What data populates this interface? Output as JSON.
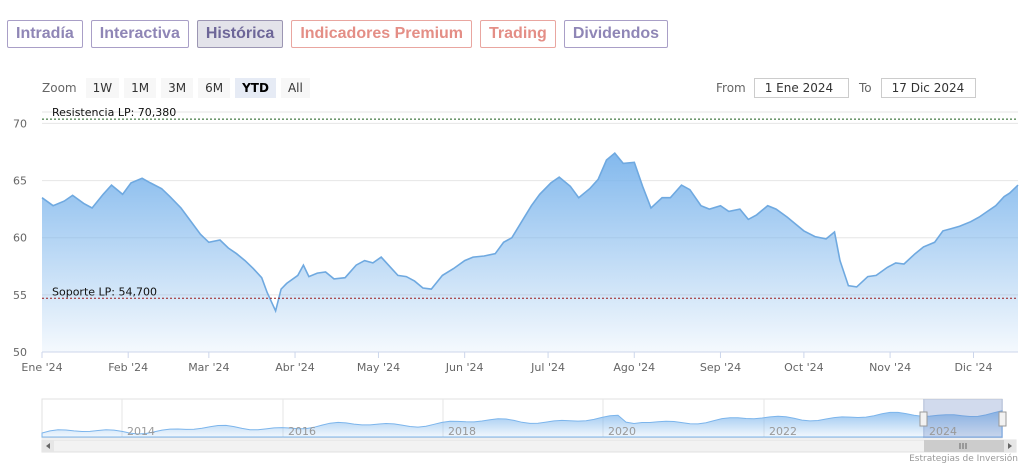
{
  "tabs": [
    {
      "label": "Intradía"
    },
    {
      "label": "Interactiva"
    },
    {
      "label": "Histórica"
    },
    {
      "label": "Indicadores Premium"
    },
    {
      "label": "Trading"
    },
    {
      "label": "Dividendos"
    }
  ],
  "zoom": {
    "label": "Zoom",
    "buttons": [
      "1W",
      "1M",
      "3M",
      "6M",
      "YTD",
      "All"
    ],
    "selected": "YTD"
  },
  "range": {
    "from_label": "From",
    "from_value": "1 Ene 2024",
    "to_label": "To",
    "to_value": "17 Dic 2024"
  },
  "credit": "Estrategias de Inversión",
  "colors": {
    "area_top": "#7cb5ec",
    "line": "#6fa9e0",
    "resistance": "#1a5c1a",
    "support": "#9b1c1c"
  },
  "chart_data": {
    "type": "area",
    "ylim": [
      50,
      71
    ],
    "yticks": [
      50,
      55,
      60,
      65,
      70
    ],
    "xlim": [
      "2024-01-01",
      "2024-12-17"
    ],
    "xticks": [
      {
        "date": "2024-01-01",
        "label": "Ene '24"
      },
      {
        "date": "2024-02-01",
        "label": "Feb '24"
      },
      {
        "date": "2024-03-01",
        "label": "Mar '24"
      },
      {
        "date": "2024-04-01",
        "label": "Abr '24"
      },
      {
        "date": "2024-05-01",
        "label": "May '24"
      },
      {
        "date": "2024-06-01",
        "label": "Jun '24"
      },
      {
        "date": "2024-07-01",
        "label": "Jul '24"
      },
      {
        "date": "2024-08-01",
        "label": "Ago '24"
      },
      {
        "date": "2024-09-01",
        "label": "Sep '24"
      },
      {
        "date": "2024-10-01",
        "label": "Oct '24"
      },
      {
        "date": "2024-11-01",
        "label": "Nov '24"
      },
      {
        "date": "2024-12-01",
        "label": "Dic '24"
      }
    ],
    "reference_lines": [
      {
        "label": "Resistencia LP: 70,380",
        "value": 70.38,
        "style": "resistance"
      },
      {
        "label": "Soporte LP: 54,700",
        "value": 54.7,
        "style": "support"
      }
    ],
    "series": [
      {
        "points": [
          [
            "2024-01-01",
            63.5
          ],
          [
            "2024-01-05",
            62.8
          ],
          [
            "2024-01-09",
            63.2
          ],
          [
            "2024-01-12",
            63.7
          ],
          [
            "2024-01-16",
            63.0
          ],
          [
            "2024-01-19",
            62.6
          ],
          [
            "2024-01-23",
            63.8
          ],
          [
            "2024-01-26",
            64.6
          ],
          [
            "2024-01-30",
            63.8
          ],
          [
            "2024-02-02",
            64.8
          ],
          [
            "2024-02-06",
            65.2
          ],
          [
            "2024-02-09",
            64.8
          ],
          [
            "2024-02-13",
            64.3
          ],
          [
            "2024-02-16",
            63.6
          ],
          [
            "2024-02-20",
            62.6
          ],
          [
            "2024-02-23",
            61.6
          ],
          [
            "2024-02-27",
            60.3
          ],
          [
            "2024-03-01",
            59.6
          ],
          [
            "2024-03-05",
            59.8
          ],
          [
            "2024-03-08",
            59.1
          ],
          [
            "2024-03-11",
            58.6
          ],
          [
            "2024-03-14",
            58.0
          ],
          [
            "2024-03-17",
            57.3
          ],
          [
            "2024-03-20",
            56.5
          ],
          [
            "2024-03-22",
            55.2
          ],
          [
            "2024-03-25",
            53.6
          ],
          [
            "2024-03-27",
            55.5
          ],
          [
            "2024-03-29",
            56.0
          ],
          [
            "2024-04-02",
            56.7
          ],
          [
            "2024-04-04",
            57.6
          ],
          [
            "2024-04-06",
            56.6
          ],
          [
            "2024-04-09",
            56.9
          ],
          [
            "2024-04-12",
            57.0
          ],
          [
            "2024-04-15",
            56.4
          ],
          [
            "2024-04-19",
            56.5
          ],
          [
            "2024-04-23",
            57.6
          ],
          [
            "2024-04-26",
            58.0
          ],
          [
            "2024-04-29",
            57.8
          ],
          [
            "2024-05-02",
            58.3
          ],
          [
            "2024-05-05",
            57.5
          ],
          [
            "2024-05-08",
            56.7
          ],
          [
            "2024-05-11",
            56.6
          ],
          [
            "2024-05-14",
            56.2
          ],
          [
            "2024-05-17",
            55.6
          ],
          [
            "2024-05-20",
            55.5
          ],
          [
            "2024-05-24",
            56.7
          ],
          [
            "2024-05-28",
            57.3
          ],
          [
            "2024-06-01",
            58.0
          ],
          [
            "2024-06-04",
            58.3
          ],
          [
            "2024-06-08",
            58.4
          ],
          [
            "2024-06-12",
            58.6
          ],
          [
            "2024-06-15",
            59.6
          ],
          [
            "2024-06-18",
            60.0
          ],
          [
            "2024-06-22",
            61.6
          ],
          [
            "2024-06-25",
            62.8
          ],
          [
            "2024-06-28",
            63.8
          ],
          [
            "2024-07-02",
            64.8
          ],
          [
            "2024-07-05",
            65.3
          ],
          [
            "2024-07-09",
            64.5
          ],
          [
            "2024-07-12",
            63.5
          ],
          [
            "2024-07-16",
            64.3
          ],
          [
            "2024-07-19",
            65.1
          ],
          [
            "2024-07-22",
            66.8
          ],
          [
            "2024-07-25",
            67.4
          ],
          [
            "2024-07-28",
            66.5
          ],
          [
            "2024-08-01",
            66.6
          ],
          [
            "2024-08-04",
            64.5
          ],
          [
            "2024-08-07",
            62.6
          ],
          [
            "2024-08-11",
            63.5
          ],
          [
            "2024-08-14",
            63.5
          ],
          [
            "2024-08-18",
            64.6
          ],
          [
            "2024-08-21",
            64.2
          ],
          [
            "2024-08-25",
            62.8
          ],
          [
            "2024-08-28",
            62.5
          ],
          [
            "2024-09-01",
            62.8
          ],
          [
            "2024-09-04",
            62.3
          ],
          [
            "2024-09-08",
            62.5
          ],
          [
            "2024-09-11",
            61.6
          ],
          [
            "2024-09-14",
            62.0
          ],
          [
            "2024-09-18",
            62.8
          ],
          [
            "2024-09-21",
            62.5
          ],
          [
            "2024-09-25",
            61.8
          ],
          [
            "2024-09-28",
            61.2
          ],
          [
            "2024-10-01",
            60.6
          ],
          [
            "2024-10-05",
            60.1
          ],
          [
            "2024-10-09",
            59.9
          ],
          [
            "2024-10-12",
            60.5
          ],
          [
            "2024-10-14",
            58.0
          ],
          [
            "2024-10-17",
            55.8
          ],
          [
            "2024-10-20",
            55.7
          ],
          [
            "2024-10-24",
            56.6
          ],
          [
            "2024-10-27",
            56.7
          ],
          [
            "2024-10-31",
            57.4
          ],
          [
            "2024-11-03",
            57.8
          ],
          [
            "2024-11-06",
            57.7
          ],
          [
            "2024-11-10",
            58.6
          ],
          [
            "2024-11-13",
            59.2
          ],
          [
            "2024-11-17",
            59.6
          ],
          [
            "2024-11-20",
            60.6
          ],
          [
            "2024-11-23",
            60.8
          ],
          [
            "2024-11-26",
            61.0
          ],
          [
            "2024-11-30",
            61.4
          ],
          [
            "2024-12-03",
            61.8
          ],
          [
            "2024-12-06",
            62.3
          ],
          [
            "2024-12-09",
            62.8
          ],
          [
            "2024-12-12",
            63.6
          ],
          [
            "2024-12-14",
            63.9
          ],
          [
            "2024-12-17",
            64.6
          ]
        ]
      }
    ],
    "navigator": {
      "xticks": [
        "2014",
        "2016",
        "2018",
        "2020",
        "2022",
        "2024"
      ]
    }
  }
}
